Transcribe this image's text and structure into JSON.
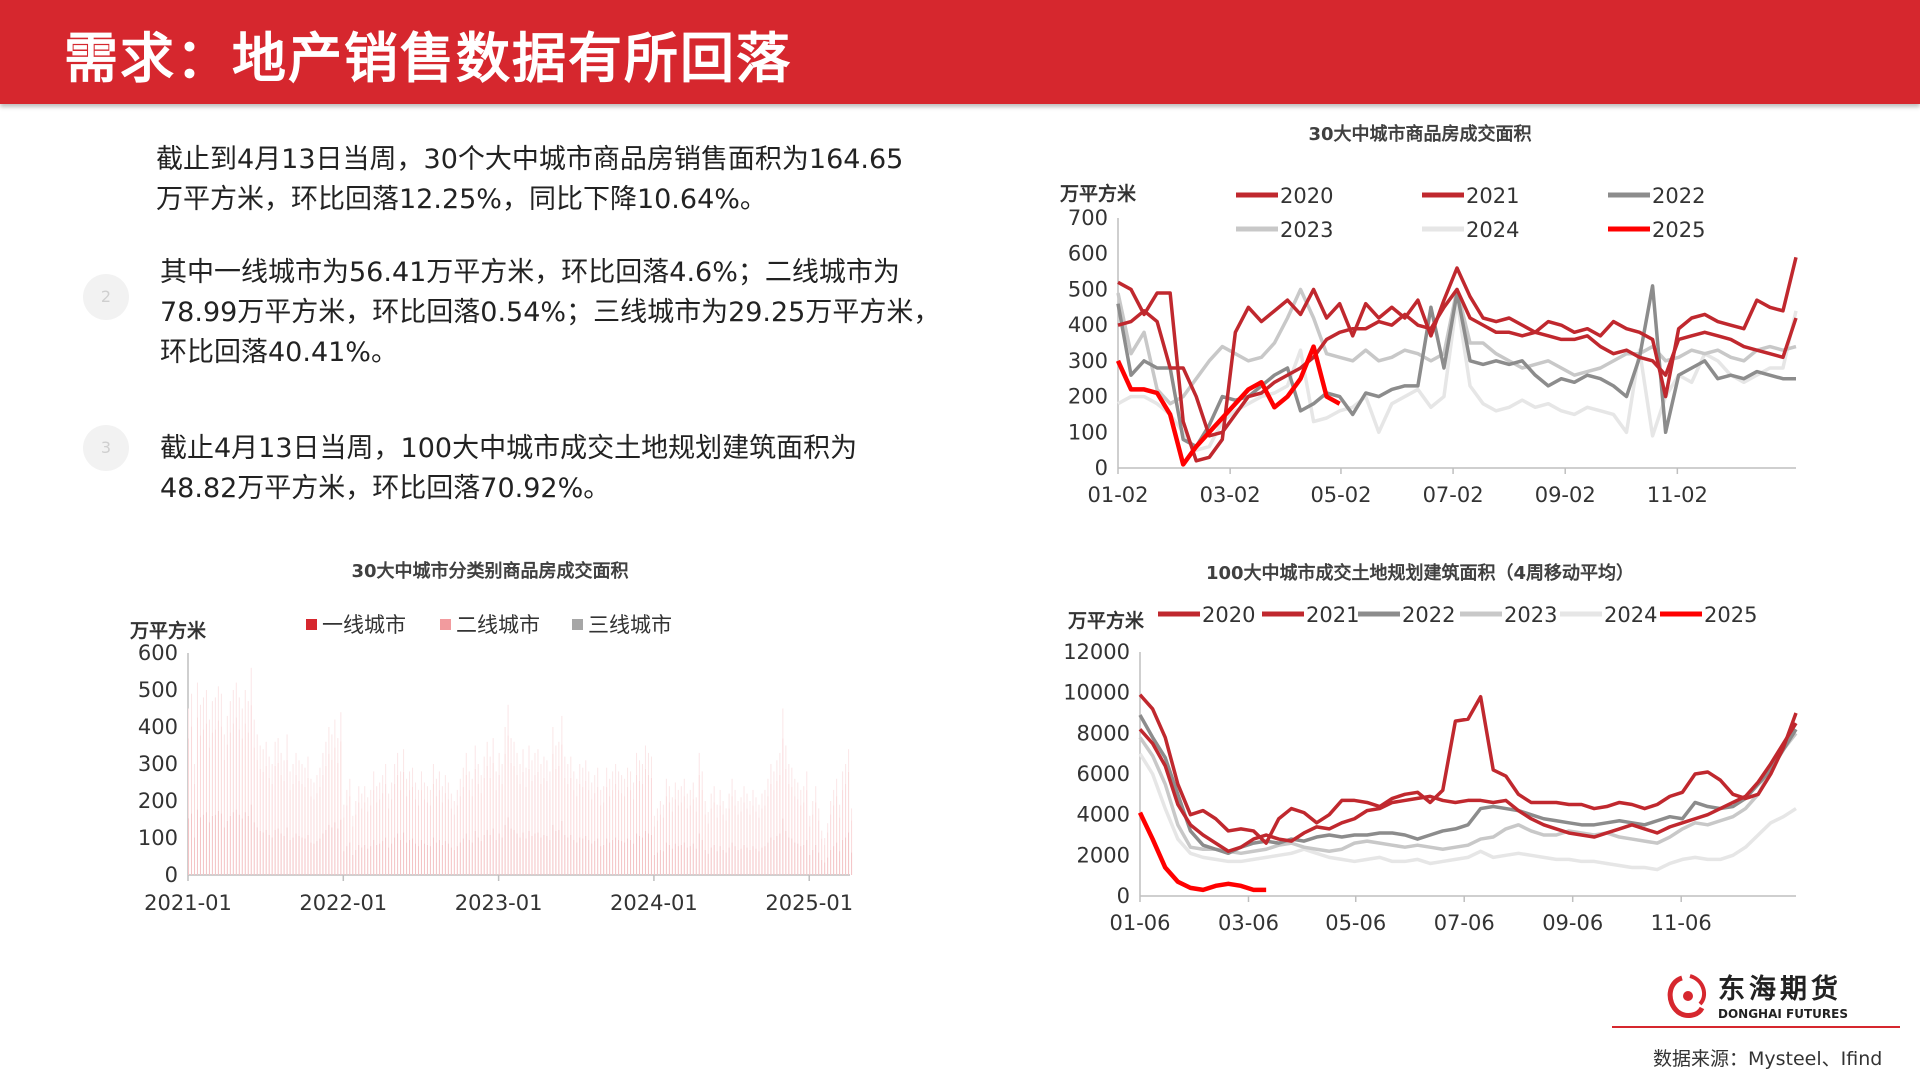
{
  "header": {
    "title": "需求：地产销售数据有所回落"
  },
  "text": {
    "p1_line1": "截止到4月13日当周，30个大中城市商品房销售面积为164.65",
    "p1_line2": "万平方米，环比回落12.25%，同比下降10.64%。",
    "bullet2": "2",
    "p2_line1": "其中一线城市为56.41万平方米，环比回落4.6%；二线城市为",
    "p2_line2": "78.99万平方米，环比回落0.54%；三线城市为29.25万平方米，",
    "p2_line3": "环比回落40.41%。",
    "bullet3": "3",
    "p3_line1": "截止4月13日当周，100大中城市成交土地规划建筑面积为",
    "p3_line2": "48.82万平方米，环比回落70.92%。"
  },
  "source": "数据来源：Mysteel、Ifind",
  "logo": {
    "cn": "东海期货",
    "en": "DONGHAI FUTURES"
  },
  "colors": {
    "header": "#d6272e",
    "logo_red": "#d6272e"
  },
  "chart_data": [
    {
      "id": "c1",
      "type": "line",
      "title": "30大中城市商品房成交面积",
      "ylabel": "万平方米",
      "ylim": [
        0,
        700
      ],
      "yticks": [
        "0",
        "100",
        "200",
        "300",
        "400",
        "500",
        "600",
        "700"
      ],
      "xticks": [
        "01-02",
        "03-02",
        "05-02",
        "07-02",
        "09-02",
        "11-02"
      ],
      "xlim": [
        0,
        52
      ],
      "xtick_pos": [
        0,
        8.6,
        17.1,
        25.7,
        34.3,
        42.9
      ],
      "grid": false,
      "legend_position": "top",
      "series": [
        {
          "name": "2020",
          "color": "#c0282e",
          "width": 3.5,
          "values": [
            520,
            500,
            430,
            490,
            490,
            130,
            20,
            30,
            80,
            380,
            450,
            410,
            440,
            470,
            430,
            500,
            420,
            460,
            370,
            460,
            420,
            450,
            420,
            470,
            370,
            470,
            560,
            480,
            420,
            410,
            420,
            400,
            380,
            410,
            400,
            380,
            390,
            370,
            410,
            390,
            380,
            360,
            200,
            390,
            420,
            430,
            410,
            400,
            390,
            470,
            450,
            440,
            590
          ]
        },
        {
          "name": "2021",
          "color": "#c0282e",
          "width": 3.5,
          "values": [
            400,
            410,
            440,
            410,
            280,
            280,
            200,
            90,
            100,
            150,
            200,
            210,
            240,
            260,
            280,
            310,
            360,
            380,
            390,
            390,
            410,
            400,
            430,
            400,
            390,
            450,
            500,
            420,
            400,
            380,
            380,
            370,
            380,
            370,
            360,
            360,
            370,
            340,
            320,
            330,
            310,
            300,
            260,
            360,
            370,
            380,
            370,
            360,
            340,
            330,
            320,
            310,
            420
          ]
        },
        {
          "name": "2022",
          "color": "#8c8c8c",
          "width": 3.5,
          "values": [
            460,
            260,
            300,
            280,
            280,
            80,
            60,
            120,
            200,
            190,
            200,
            230,
            260,
            280,
            160,
            180,
            210,
            200,
            150,
            210,
            200,
            220,
            230,
            230,
            450,
            280,
            490,
            300,
            290,
            300,
            290,
            300,
            260,
            230,
            250,
            240,
            260,
            250,
            230,
            200,
            310,
            510,
            100,
            260,
            280,
            300,
            250,
            260,
            250,
            270,
            260,
            250,
            250
          ]
        },
        {
          "name": "2023",
          "color": "#c8c8c8",
          "width": 3.5,
          "values": [
            490,
            320,
            380,
            220,
            180,
            200,
            250,
            300,
            340,
            320,
            300,
            310,
            350,
            420,
            500,
            420,
            320,
            310,
            300,
            330,
            300,
            310,
            330,
            320,
            300,
            320,
            500,
            350,
            350,
            320,
            300,
            280,
            290,
            300,
            280,
            260,
            270,
            280,
            300,
            320,
            320,
            340,
            300,
            310,
            330,
            320,
            330,
            310,
            300,
            330,
            340,
            330,
            340
          ]
        },
        {
          "name": "2024",
          "color": "#e6e6e6",
          "width": 3.5,
          "values": [
            180,
            200,
            200,
            180,
            150,
            100,
            50,
            60,
            130,
            160,
            180,
            200,
            210,
            230,
            330,
            130,
            140,
            160,
            170,
            200,
            100,
            180,
            200,
            220,
            170,
            200,
            470,
            230,
            180,
            160,
            170,
            190,
            170,
            180,
            160,
            150,
            170,
            160,
            150,
            100,
            330,
            90,
            200,
            260,
            240,
            320,
            300,
            260,
            240,
            260,
            280,
            280,
            440
          ]
        },
        {
          "name": "2025",
          "color": "#ff0000",
          "width": 4.5,
          "values": [
            300,
            220,
            220,
            210,
            150,
            10,
            60,
            100,
            140,
            180,
            220,
            240,
            170,
            200,
            250,
            340,
            200,
            180
          ]
        }
      ]
    },
    {
      "id": "c2",
      "type": "bar",
      "title": "30大中城市分类别商品房成交面积",
      "ylabel": "万平方米",
      "ylim": [
        0,
        600
      ],
      "yticks": [
        "0",
        "100",
        "200",
        "300",
        "400",
        "500",
        "600"
      ],
      "xticks": [
        "2021-01",
        "2022-01",
        "2023-01",
        "2024-01",
        "2025-01"
      ],
      "grid": false,
      "legend_position": "top",
      "series": [
        {
          "name": "一线城市",
          "color": "#d6272e"
        },
        {
          "name": "二线城市",
          "color": "#f29b9e"
        },
        {
          "name": "三线城市",
          "color": "#a6a6a6"
        }
      ],
      "totals": {
        "2021": [
          450,
          490,
          300,
          520,
          460,
          480,
          500,
          420,
          470,
          480,
          510,
          490,
          380,
          430,
          470,
          500,
          520,
          480,
          450,
          500,
          470,
          560,
          420,
          380,
          350,
          340,
          360,
          320,
          300,
          360,
          370,
          330,
          310,
          380,
          280,
          300,
          330,
          310,
          300,
          290,
          320,
          260,
          250,
          270,
          290,
          330,
          360,
          400,
          380,
          420,
          370,
          440
        ],
        "2022": [
          190,
          230,
          260,
          160,
          200,
          240,
          220,
          240,
          210,
          230,
          280,
          240,
          250,
          270,
          300,
          220,
          250,
          300,
          330,
          280,
          340,
          260,
          280,
          290,
          250,
          230,
          280,
          250,
          240,
          230,
          300,
          260,
          280,
          240,
          270,
          250,
          220,
          200,
          230,
          260,
          290,
          330,
          280,
          260,
          350,
          300,
          270,
          320,
          360,
          320,
          370,
          280
        ],
        "2023": [
          330,
          300,
          400,
          460,
          370,
          360,
          330,
          300,
          340,
          290,
          350,
          310,
          330,
          340,
          300,
          320,
          310,
          280,
          400,
          350,
          360,
          430,
          320,
          300,
          320,
          280,
          260,
          300,
          290,
          310,
          280,
          250,
          270,
          290,
          230,
          240,
          290,
          260,
          280,
          300,
          280,
          270,
          260,
          290,
          280,
          250,
          330,
          310,
          300,
          350,
          330,
          320
        ],
        "2024": [
          160,
          180,
          200,
          190,
          260,
          240,
          210,
          250,
          230,
          240,
          260,
          220,
          230,
          250,
          210,
          330,
          280,
          200,
          170,
          220,
          240,
          190,
          230,
          200,
          180,
          220,
          260,
          230,
          200,
          210,
          240,
          220,
          200,
          230,
          210,
          190,
          220,
          230,
          260,
          300,
          280,
          310,
          330,
          450,
          350,
          300,
          290,
          260,
          250,
          230,
          240,
          280
        ],
        "2025": [
          160,
          200,
          240,
          180,
          120,
          100,
          140,
          200,
          230,
          260,
          190,
          280,
          300,
          340,
          180
        ]
      }
    },
    {
      "id": "c3",
      "type": "line",
      "title": "100大中城市成交土地规划建筑面积（4周移动平均）",
      "ylabel": "万平方米",
      "ylim": [
        0,
        12000
      ],
      "yticks": [
        "0",
        "2000",
        "4000",
        "6000",
        "8000",
        "10000",
        "12000"
      ],
      "xticks": [
        "01-06",
        "03-06",
        "05-06",
        "07-06",
        "09-06",
        "11-06"
      ],
      "xlim": [
        0,
        52
      ],
      "xtick_pos": [
        0,
        8.6,
        17.1,
        25.7,
        34.3,
        42.9
      ],
      "grid": false,
      "legend_position": "top",
      "series": [
        {
          "name": "2020",
          "color": "#c0282e",
          "width": 3.5,
          "values": [
            9900,
            9200,
            7800,
            5500,
            4000,
            4200,
            3800,
            3200,
            3300,
            3200,
            2600,
            3800,
            4300,
            4100,
            3600,
            4000,
            4700,
            4700,
            4600,
            4400,
            4800,
            5000,
            5100,
            4600,
            5200,
            8600,
            8700,
            9800,
            6200,
            5900,
            5000,
            4600,
            4600,
            4600,
            4500,
            4500,
            4300,
            4400,
            4600,
            4500,
            4300,
            4500,
            4900,
            5100,
            6000,
            6100,
            5700,
            5000,
            4800,
            5000,
            6000,
            7300,
            9000
          ]
        },
        {
          "name": "2021",
          "color": "#c0282e",
          "width": 3.5,
          "values": [
            8200,
            7500,
            6400,
            4500,
            3500,
            3000,
            2600,
            2200,
            2400,
            2800,
            3000,
            2800,
            2700,
            3100,
            3400,
            3300,
            3600,
            3800,
            4200,
            4300,
            4600,
            4700,
            4800,
            4900,
            4700,
            4600,
            4700,
            4700,
            4600,
            4700,
            4200,
            3800,
            3500,
            3300,
            3100,
            3000,
            2900,
            3100,
            3300,
            3500,
            3300,
            3100,
            3400,
            3600,
            3800,
            4000,
            4300,
            4600,
            4900,
            5600,
            6500,
            7500,
            8500
          ]
        },
        {
          "name": "2022",
          "color": "#8c8c8c",
          "width": 3.5,
          "values": [
            8900,
            7800,
            6800,
            5000,
            3200,
            2500,
            2300,
            2100,
            2400,
            2600,
            2700,
            2600,
            2800,
            2700,
            2900,
            3000,
            2900,
            3000,
            3000,
            3100,
            3100,
            3000,
            2800,
            3000,
            3200,
            3300,
            3500,
            4300,
            4400,
            4300,
            4200,
            4000,
            3800,
            3700,
            3600,
            3500,
            3500,
            3600,
            3700,
            3600,
            3500,
            3700,
            3900,
            3800,
            4600,
            4400,
            4300,
            4400,
            4800,
            5500,
            6200,
            7200,
            8200
          ]
        },
        {
          "name": "2023",
          "color": "#c8c8c8",
          "width": 3.5,
          "values": [
            7800,
            6900,
            5500,
            3500,
            2400,
            2300,
            2300,
            2200,
            2100,
            2200,
            2300,
            2500,
            2600,
            2400,
            2300,
            2200,
            2300,
            2600,
            2700,
            2600,
            2500,
            2400,
            2500,
            2400,
            2300,
            2400,
            2500,
            2800,
            2900,
            3300,
            3500,
            3200,
            3000,
            3000,
            3200,
            3100,
            3000,
            3100,
            2900,
            2800,
            2700,
            2600,
            2900,
            3300,
            3600,
            3500,
            3700,
            3900,
            4300,
            5000,
            6200,
            7200,
            8000
          ]
        },
        {
          "name": "2024",
          "color": "#e6e6e6",
          "width": 3.5,
          "values": [
            7000,
            6000,
            4300,
            2800,
            2100,
            1900,
            1800,
            1700,
            1700,
            1800,
            1900,
            2000,
            2100,
            2300,
            2100,
            1900,
            1800,
            1700,
            1800,
            1900,
            1700,
            1700,
            1800,
            1600,
            1700,
            1800,
            1900,
            2200,
            1900,
            2000,
            2100,
            2000,
            1900,
            1800,
            1800,
            1700,
            1700,
            1600,
            1500,
            1400,
            1400,
            1300,
            1600,
            1800,
            1900,
            1800,
            1800,
            2000,
            2400,
            3000,
            3600,
            3900,
            4300
          ]
        },
        {
          "name": "2025",
          "color": "#ff0000",
          "width": 4.5,
          "values": [
            4100,
            2800,
            1400,
            700,
            400,
            300,
            500,
            600,
            500,
            300,
            300
          ]
        }
      ]
    }
  ]
}
